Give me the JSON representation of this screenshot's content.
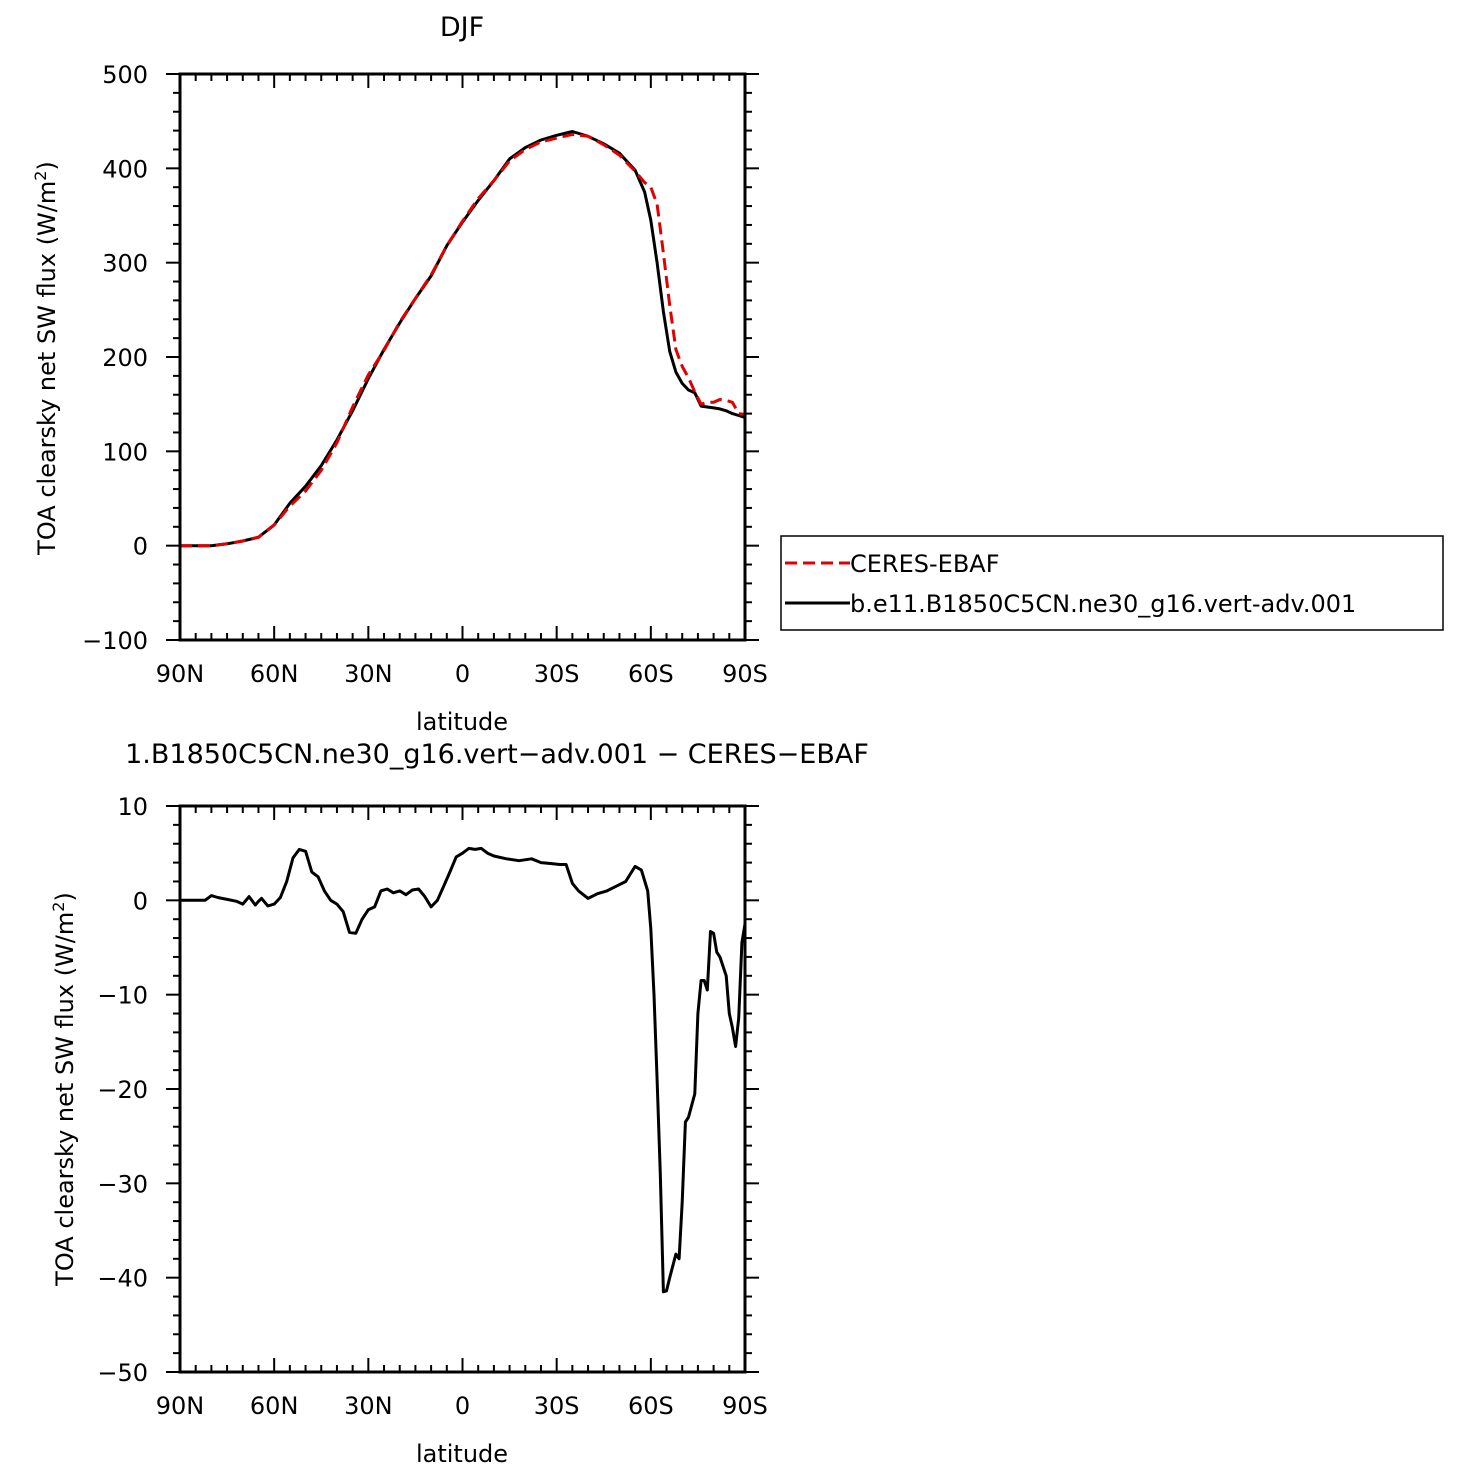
{
  "colors": {
    "obs": "#e00000",
    "model": "#000000"
  },
  "legend": {
    "placement": "right of top panel",
    "entries": [
      "CERES-EBAF",
      "b.e11.B1850C5CN.ne30_g16.vert-adv.001"
    ]
  },
  "chart_data": [
    {
      "type": "line",
      "title": "DJF",
      "xlabel": "latitude",
      "ylabel": "TOA clearsky net SW flux (W/m",
      "ylabel_sup": "2",
      "ylabel_end": ")",
      "xlim": [
        -90,
        90
      ],
      "ylim": [
        -100,
        500
      ],
      "xticks": [
        -90,
        -60,
        -30,
        0,
        30,
        60,
        90
      ],
      "xtick_labels": [
        "90N",
        "60N",
        "30N",
        "0",
        "30S",
        "60S",
        "90S"
      ],
      "yticks": [
        -100,
        0,
        100,
        200,
        300,
        400,
        500
      ],
      "ytick_labels": [
        "−100",
        "0",
        "100",
        "200",
        "300",
        "400",
        "500"
      ],
      "series": [
        {
          "name": "CERES-EBAF",
          "style": "dashed",
          "color": "#e00000",
          "x": [
            -90,
            -85,
            -80,
            -75,
            -70,
            -65,
            -60,
            -55,
            -50,
            -45,
            -40,
            -35,
            -30,
            -25,
            -20,
            -15,
            -10,
            -5,
            0,
            5,
            10,
            15,
            20,
            25,
            30,
            35,
            40,
            45,
            50,
            55,
            58,
            60,
            62,
            64,
            66,
            68,
            70,
            72,
            74,
            76,
            78,
            80,
            82,
            84,
            86,
            88,
            90
          ],
          "y": [
            0,
            0,
            0,
            2,
            5,
            9,
            22,
            42,
            58,
            80,
            109,
            147,
            181,
            207,
            237,
            262,
            287,
            318,
            344,
            368,
            387,
            408,
            420,
            428,
            432,
            436,
            434,
            425,
            414,
            397,
            385,
            380,
            362,
            310,
            255,
            208,
            190,
            178,
            163,
            150,
            152,
            152,
            155,
            154,
            152,
            140,
            139
          ]
        },
        {
          "name": "b.e11.B1850C5CN.ne30_g16.vert-adv.001",
          "style": "solid",
          "color": "#000000",
          "x": [
            -90,
            -85,
            -80,
            -75,
            -70,
            -65,
            -60,
            -55,
            -50,
            -45,
            -40,
            -35,
            -30,
            -25,
            -20,
            -15,
            -10,
            -5,
            0,
            5,
            10,
            15,
            20,
            25,
            30,
            35,
            40,
            45,
            50,
            55,
            58,
            60,
            62,
            64,
            66,
            68,
            70,
            72,
            74,
            76,
            78,
            80,
            82,
            84,
            86,
            88,
            90
          ],
          "y": [
            0,
            0,
            0,
            2,
            5,
            9,
            22,
            45,
            63,
            85,
            112,
            143,
            177,
            208,
            236,
            262,
            286,
            318,
            343,
            366,
            387,
            410,
            422,
            430,
            435,
            439,
            434,
            426,
            416,
            398,
            375,
            345,
            300,
            248,
            206,
            184,
            172,
            165,
            162,
            148,
            147,
            146,
            145,
            143,
            140,
            138,
            136
          ]
        }
      ]
    },
    {
      "type": "line",
      "title": "1.B1850C5CN.ne30_g16.vert−adv.001 − CERES−EBAF",
      "xlabel": "latitude",
      "ylabel": "TOA clearsky net SW flux (W/m",
      "ylabel_sup": "2",
      "ylabel_end": ")",
      "xlim": [
        -90,
        90
      ],
      "ylim": [
        -50,
        10
      ],
      "xticks": [
        -90,
        -60,
        -30,
        0,
        30,
        60,
        90
      ],
      "xtick_labels": [
        "90N",
        "60N",
        "30N",
        "0",
        "30S",
        "60S",
        "90S"
      ],
      "yticks": [
        -50,
        -40,
        -30,
        -20,
        -10,
        0,
        10
      ],
      "ytick_labels": [
        "−50",
        "−40",
        "−30",
        "−20",
        "−10",
        "0",
        "10"
      ],
      "series": [
        {
          "style": "solid",
          "color": "#000000",
          "x": [
            -90,
            -85,
            -82,
            -80,
            -78,
            -75,
            -72,
            -70,
            -68,
            -66,
            -65,
            -64,
            -62,
            -60,
            -58,
            -56,
            -54,
            -52,
            -50,
            -48,
            -46,
            -44,
            -42,
            -40,
            -38,
            -36,
            -34,
            -32,
            -30,
            -28,
            -26,
            -24,
            -22,
            -20,
            -18,
            -16,
            -14,
            -12,
            -10,
            -8,
            -6,
            -4,
            -2,
            0,
            2,
            4,
            6,
            8,
            10,
            14,
            18,
            22,
            25,
            28,
            31,
            33,
            35,
            37,
            40,
            43,
            46,
            49,
            52,
            55,
            57,
            59,
            60,
            61,
            62,
            63,
            64,
            65,
            66,
            68,
            69,
            70,
            71,
            72,
            74,
            75,
            76,
            77,
            78,
            79,
            80,
            81,
            82,
            84,
            85,
            86,
            87,
            88,
            89,
            90
          ],
          "y": [
            0,
            0,
            0,
            0.5,
            0.3,
            0.1,
            -0.1,
            -0.4,
            0.4,
            -0.5,
            -0.1,
            0.2,
            -0.6,
            -0.4,
            0.3,
            2,
            4.5,
            5.4,
            5.2,
            3,
            2.5,
            1,
            0,
            -0.4,
            -1.2,
            -3.4,
            -3.5,
            -2,
            -1,
            -0.7,
            1,
            1.2,
            0.8,
            1,
            0.6,
            1.1,
            1.2,
            0.4,
            -0.7,
            0,
            1.5,
            3,
            4.6,
            5,
            5.5,
            5.4,
            5.5,
            5,
            4.7,
            4.4,
            4.2,
            4.4,
            4.0,
            3.9,
            3.8,
            3.8,
            1.8,
            1.0,
            0.2,
            0.7,
            1.0,
            1.5,
            2.0,
            3.6,
            3.2,
            1.0,
            -3,
            -10,
            -19,
            -29,
            -41.5,
            -41.4,
            -40,
            -37.5,
            -38,
            -32,
            -23.5,
            -23,
            -20.5,
            -12,
            -8.5,
            -8.5,
            -9.5,
            -3.3,
            -3.5,
            -5.5,
            -6,
            -8,
            -12,
            -13.5,
            -15.5,
            -12.5,
            -4.5,
            -2.5
          ]
        }
      ]
    }
  ]
}
